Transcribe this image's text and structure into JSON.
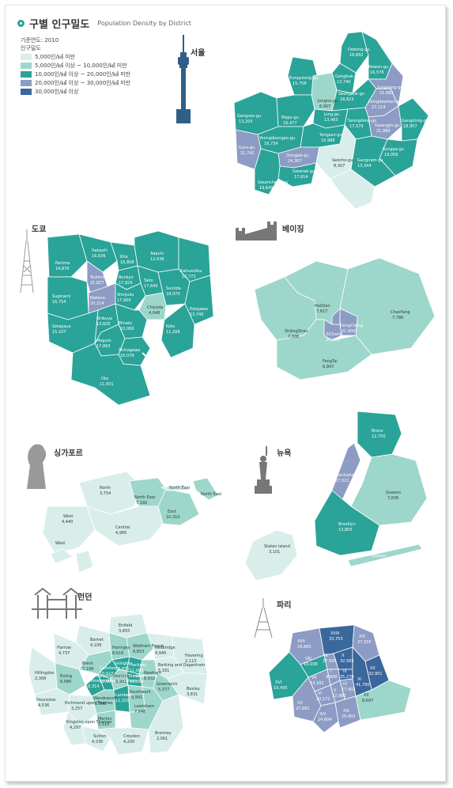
{
  "header": {
    "title": "구별 인구밀도",
    "subtitle": "Population Density by District"
  },
  "legend": {
    "year": "기준연도: 2010",
    "heading": "인구밀도",
    "classes": [
      {
        "label": "5,000인/㎢ 미만",
        "color": "#d9eeea"
      },
      {
        "label": "5,000인/㎢  이상 ~ 10,000인/㎢  미만",
        "color": "#9dd6ca"
      },
      {
        "label": "10,000인/㎢  이상 ~ 20,000인/㎢  미만",
        "color": "#2aa398"
      },
      {
        "label": "20,000인/㎢  이상 ~ 30,000인/㎢  미만",
        "color": "#8d9cc4"
      },
      {
        "label": "30,000인/㎢  이상",
        "color": "#3a679c"
      }
    ]
  },
  "cities": {
    "seoul": "서울",
    "tokyo": "도쿄",
    "beijing": "베이징",
    "singapore": "싱가포르",
    "newyork": "뉴욕",
    "london": "런던",
    "paris": "파리"
  },
  "seoul": {
    "d1": {
      "name": "Dobong-gu",
      "value": "16,842"
    },
    "d2": {
      "name": "Nowon-gu",
      "value": "16,576"
    },
    "d3": {
      "name": "Gangbuk-gu",
      "value": "13,740"
    },
    "d4": {
      "name": "Eunpyeong-gu",
      "value": "15,758"
    },
    "d5": {
      "name": "Jongno-gu",
      "value": "6,907"
    },
    "d6": {
      "name": "Seongbuk-gu",
      "value": "18,823"
    },
    "d7": {
      "name": "Dongdaemun-gu",
      "value": "27,119"
    },
    "d8": {
      "name": "Jungnang-gu",
      "value": "21,682"
    },
    "d9": {
      "name": "Gangseo-gu",
      "value": "13,205"
    },
    "d10": {
      "name": "Mapo-gu",
      "value": "16,477"
    },
    "d11": {
      "name": "Jung-gu",
      "value": "13,483"
    },
    "d12": {
      "name": "Seongdong-gu",
      "value": "17,579"
    },
    "d13": {
      "name": "Gwangjin-gu",
      "value": "21,980"
    },
    "d14": {
      "name": "Gangdong-gu",
      "value": "18,957"
    },
    "d15": {
      "name": "Yeongdeungpo-gu",
      "value": "16,734"
    },
    "d16": {
      "name": "Yongsan-gu",
      "value": "10,988"
    },
    "d17": {
      "name": "Songpa-gu",
      "value": "19,056"
    },
    "d18": {
      "name": "Guro-gu",
      "value": "21,742"
    },
    "d19": {
      "name": "Dongjak-gu",
      "value": "24,307"
    },
    "d20": {
      "name": "Seocho-gu",
      "value": "8,307"
    },
    "d21": {
      "name": "Gangnam-gu",
      "value": "13,344"
    },
    "d22": {
      "name": "Gwanak-gu",
      "value": "17,614"
    },
    "d23": {
      "name": "Geumcheon-gu",
      "value": "19,649"
    }
  },
  "tokyo": {
    "d1": {
      "name": "Itabashi",
      "value": "16,636"
    },
    "d2": {
      "name": "Adachi",
      "value": "12,636"
    },
    "d3": {
      "name": "Kita",
      "value": "16,858"
    },
    "d4": {
      "name": "Nerima",
      "value": "14,870"
    },
    "d5": {
      "name": "Katsushika",
      "value": "12,772"
    },
    "d6": {
      "name": "Suginami",
      "value": "16,754"
    },
    "d7": {
      "name": "Toshima",
      "value": "21,827"
    },
    "d8": {
      "name": "Bunkyo",
      "value": "17,929"
    },
    "d9": {
      "name": "Taito",
      "value": "17,640"
    },
    "d10": {
      "name": "Sumida",
      "value": "18,070"
    },
    "d11": {
      "name": "Edogawa",
      "value": "13,745"
    },
    "d12": {
      "name": "Nakano",
      "value": "20,214"
    },
    "d13": {
      "name": "Shinjuku",
      "value": "17,900"
    },
    "d14": {
      "name": "Chiyoda",
      "value": "4,048"
    },
    "d15": {
      "name": "Setagaya",
      "value": "15,107"
    },
    "d16": {
      "name": "Shibuya",
      "value": "13,605"
    },
    "d17": {
      "name": "Minato",
      "value": "10,069"
    },
    "d18": {
      "name": "Meguro",
      "value": "17,893"
    },
    "d19": {
      "name": "Koto",
      "value": "11,208"
    },
    "d20": {
      "name": "Shinagawa",
      "value": "16,078"
    },
    "d21": {
      "name": "Ota",
      "value": "11,601"
    }
  },
  "beijing": {
    "d1": {
      "name": "HaiDian",
      "value": "7,617"
    },
    "d2": {
      "name": "ChaoYang",
      "value": "7,786"
    },
    "d3": {
      "name": "ShijingShan",
      "value": "7,306"
    },
    "d4": {
      "name": "XiCheng",
      "value": "24,908"
    },
    "d5": {
      "name": "DongCheng",
      "value": "21,900"
    },
    "d6": {
      "name": "FengTai",
      "value": "6,907"
    }
  },
  "singapore": {
    "d1": {
      "name": "North",
      "value": "3,754"
    },
    "d2": {
      "name": "North East",
      "value": "7,192"
    },
    "d3": {
      "name": "East",
      "value": "10,310"
    },
    "d4": {
      "name": "West",
      "value": "4,440"
    },
    "d5": {
      "name": "Central",
      "value": "4,985"
    },
    "island1": "North East",
    "island2": "North East",
    "island3": "West"
  },
  "newyork": {
    "d1": {
      "name": "Bronx",
      "value": "12,700"
    },
    "d2": {
      "name": "Manhattan",
      "value": "27,521"
    },
    "d3": {
      "name": "Queens",
      "value": "7,836"
    },
    "d4": {
      "name": "Brooklyn",
      "value": "13,805"
    },
    "d5": {
      "name": "Staten Island",
      "value": "3,101"
    },
    "island": "Queens"
  },
  "london": {
    "d1": {
      "name": "Enfield",
      "value": "3,855"
    },
    "d2": {
      "name": "Barnet",
      "value": "4,109"
    },
    "d3": {
      "name": "Haringey",
      "value": "8,616"
    },
    "d4": {
      "name": "Waltham Forest",
      "value": "6,853"
    },
    "d5": {
      "name": "Redbridge",
      "value": "4,945"
    },
    "d6": {
      "name": "Havering",
      "value": "2,113"
    },
    "d7": {
      "name": "Harrow",
      "value": "4,737"
    },
    "d8": {
      "name": "Brent",
      "value": "7,198"
    },
    "d9": {
      "name": "Camden",
      "value": "10,510"
    },
    "d10": {
      "name": "Islington",
      "value": "13,875"
    },
    "d11": {
      "name": "Hackney",
      "value": "11,008"
    },
    "d12": {
      "name": "Barking and Dagenham",
      "value": "5,161"
    },
    "d13": {
      "name": "Hillingdon",
      "value": "2,368"
    },
    "d14": {
      "name": "Ealing",
      "value": "6,086"
    },
    "d15": {
      "name": "Hammersmith and Fulham",
      "value": "10,314"
    },
    "d16": {
      "name": "Kensington and Chelsea",
      "value": "12,993"
    },
    "d17": {
      "name": "Westminster",
      "value": "9,901"
    },
    "d18": {
      "name": "Tower Hamlets",
      "value": "12,854"
    },
    "d19": {
      "name": "Newham",
      "value": "8,932"
    },
    "d20": {
      "name": "Hounslow",
      "value": "4,536"
    },
    "d21": {
      "name": "Wandsworth",
      "value": "8,900"
    },
    "d22": {
      "name": "Lambeth",
      "value": "11,220"
    },
    "d23": {
      "name": "Southwark",
      "value": "9,991"
    },
    "d24": {
      "name": "Greenwich",
      "value": "5,377"
    },
    "d25": {
      "name": "Bexley",
      "value": "3,831"
    },
    "d26": {
      "name": "Richmond upon Thames",
      "value": "3,257"
    },
    "d27": {
      "name": "Kingston upon Thames",
      "value": "4,297"
    },
    "d28": {
      "name": "Merton",
      "value": "5,310"
    },
    "d29": {
      "name": "Lewisham",
      "value": "7,648"
    },
    "d30": {
      "name": "Sutton",
      "value": "4,336"
    },
    "d31": {
      "name": "Croydon",
      "value": "4,200"
    },
    "d32": {
      "name": "Bromley",
      "value": "2,061"
    }
  },
  "paris": {
    "d1": {
      "name": "XVII",
      "value": "29,885"
    },
    "d2": {
      "name": "XVIII",
      "value": "33,753"
    },
    "d3": {
      "name": "XIX",
      "value": "27,555"
    },
    "d4": {
      "name": "VIII",
      "value": "10,038"
    },
    "d5": {
      "name": "IX",
      "value": "27,599"
    },
    "d6": {
      "name": "X",
      "value": "32,565"
    },
    "d7": {
      "name": "XX",
      "value": "32,901"
    },
    "d8": {
      "name": "XVI",
      "value": "10,495"
    },
    "d9": {
      "name": "VII",
      "value": "14,182"
    },
    "d10": {
      "name": "I",
      "value": "9,809"
    },
    "d11": {
      "name": "III",
      "value": "35,270"
    },
    "d12": {
      "name": "XI",
      "value": "41,790"
    },
    "d13": {
      "name": "IV",
      "value": "17,402"
    },
    "d14": {
      "name": "VI",
      "value": "20,172"
    },
    "d15": {
      "name": "V",
      "value": "22,960"
    },
    "d16": {
      "name": "XV",
      "value": "27,682"
    },
    "d17": {
      "name": "XIV",
      "value": "24,604"
    },
    "d18": {
      "name": "XIII",
      "value": "25,403"
    },
    "d19": {
      "name": "XII",
      "value": "8,697"
    }
  }
}
